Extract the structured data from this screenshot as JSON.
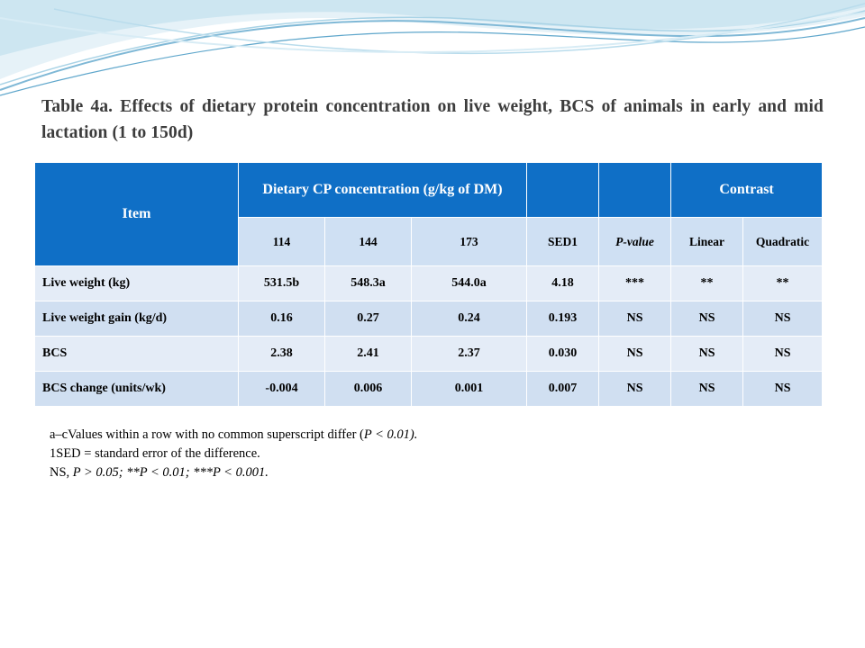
{
  "title": "Table 4a. Effects of dietary protein concentration on live weight, BCS of animals in early and mid lactation (1 to 150d)",
  "table": {
    "header1": {
      "item": "Item",
      "cp": "Dietary CP concentration (g/kg of DM)",
      "contrast": "Contrast"
    },
    "header2": [
      "114",
      "144",
      "173",
      "SED1",
      "P-value",
      "Linear",
      "Quadratic"
    ],
    "rows": [
      {
        "label": "Live weight (kg)",
        "cells": [
          "531.5b",
          "548.3a",
          "544.0a",
          "4.18",
          "***",
          "**",
          "**"
        ]
      },
      {
        "label": "Live weight gain (kg/d)",
        "cells": [
          "0.16",
          "0.27",
          "0.24",
          "0.193",
          "NS",
          "NS",
          "NS"
        ]
      },
      {
        "label": "BCS",
        "cells": [
          "2.38",
          "2.41",
          "2.37",
          "0.030",
          "NS",
          "NS",
          "NS"
        ]
      },
      {
        "label": "BCS change (units/wk)",
        "cells": [
          "-0.004",
          "0.006",
          "0.001",
          "0.007",
          "NS",
          "NS",
          "NS"
        ]
      }
    ]
  },
  "notes": {
    "line1_a": "a–cValues within a row with no common superscript differ (",
    "line1_b": "P < 0.01).",
    "line2": "1SED = standard error of the difference.",
    "line3_a": "NS, ",
    "line3_b": "P > 0.05; **P < 0.01; ***P < 0.001."
  }
}
